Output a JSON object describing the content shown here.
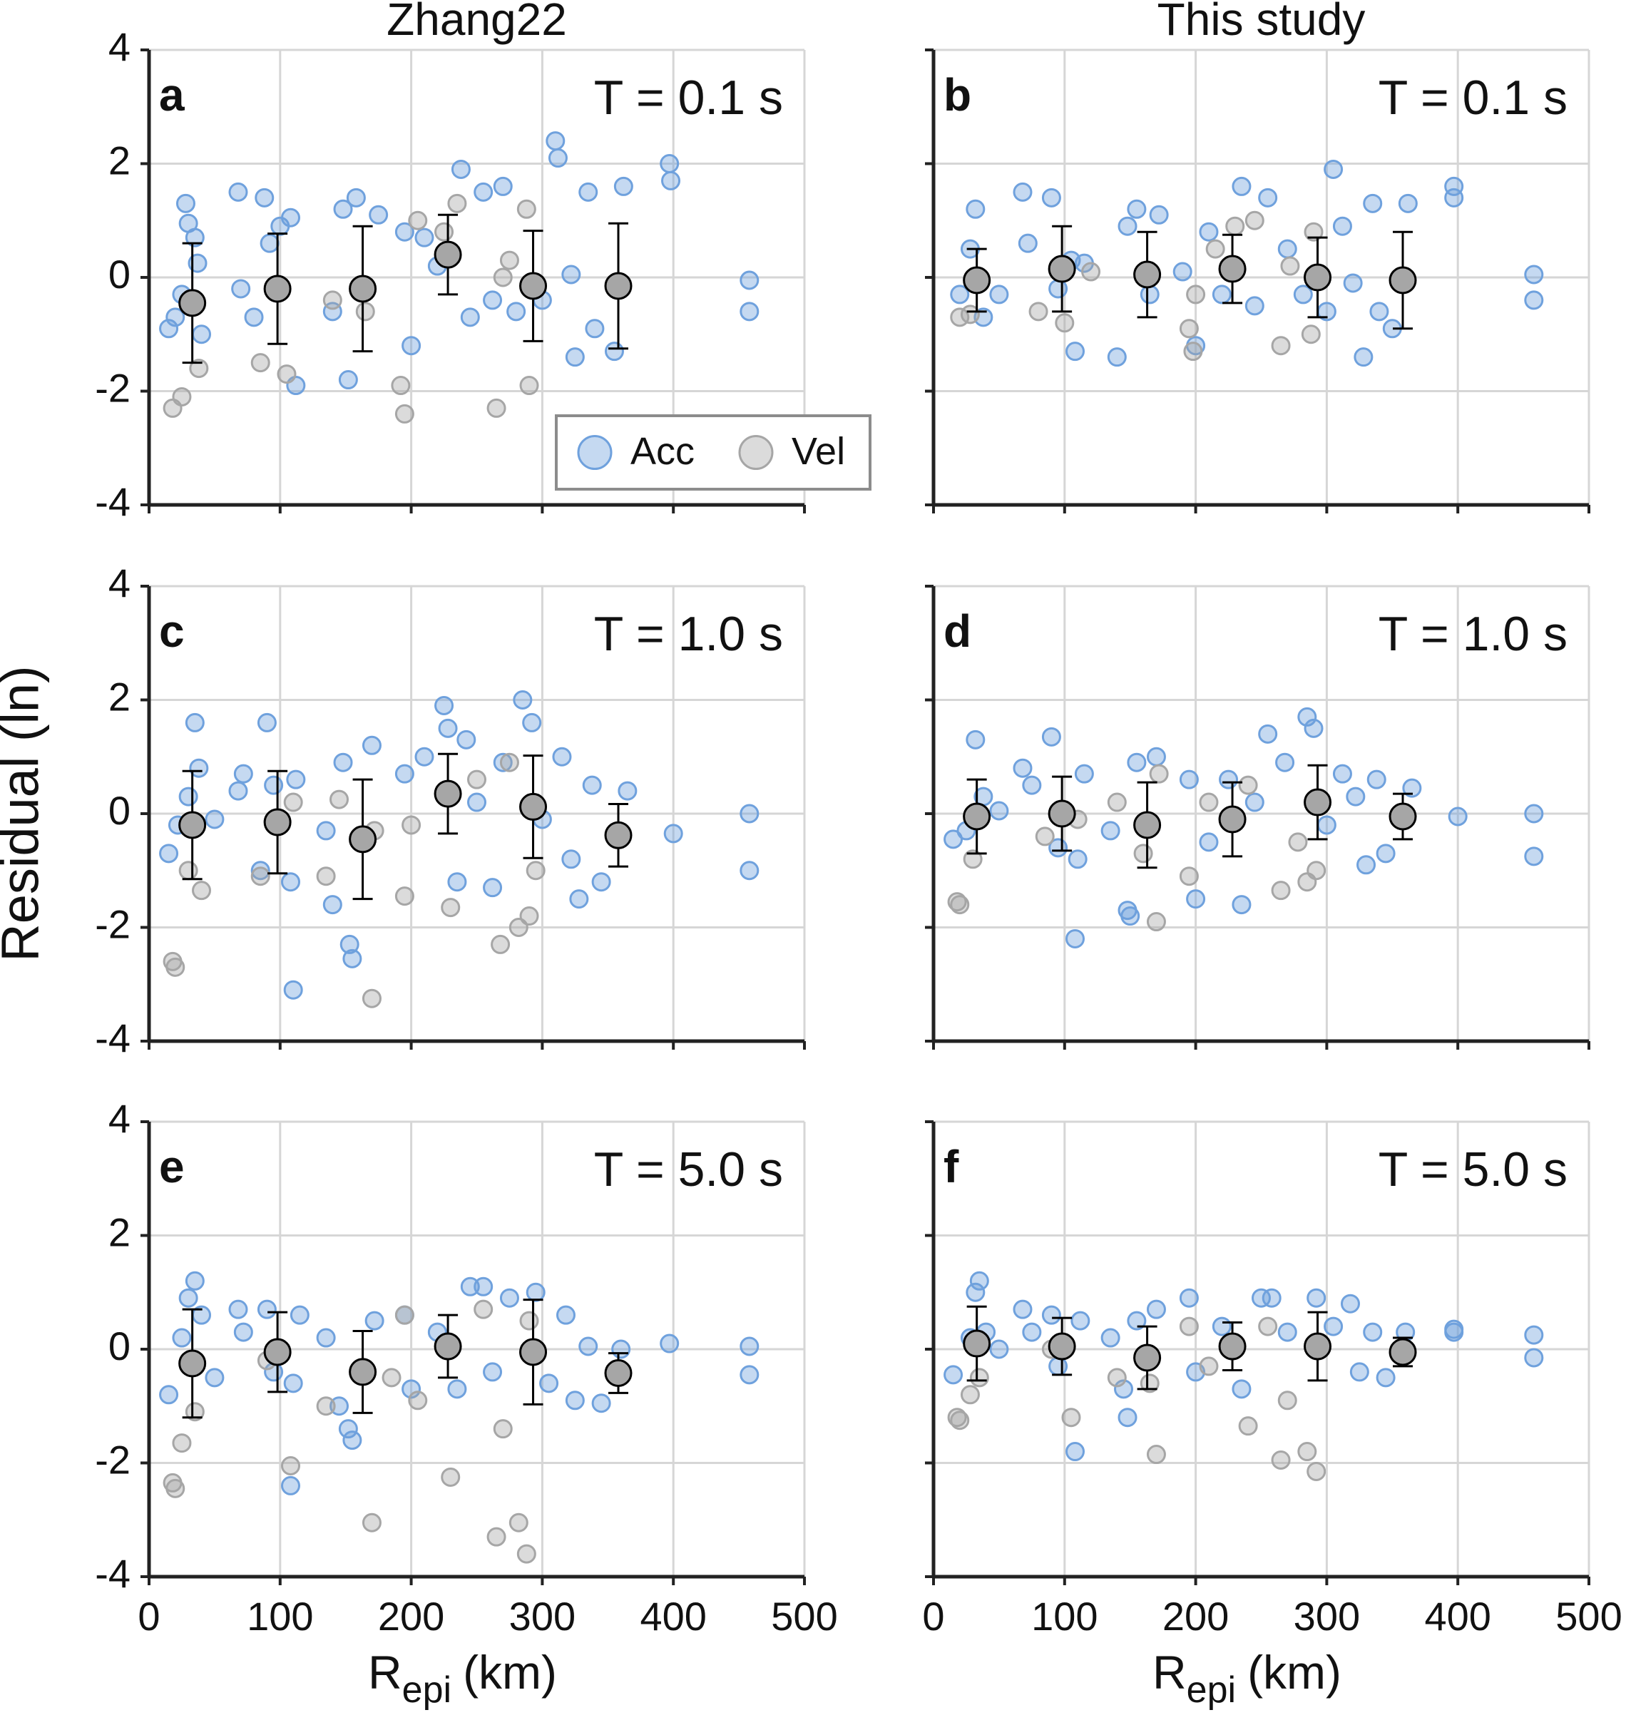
{
  "chart_data": [
    {
      "type": "scatter",
      "title": "Zhang22",
      "panel": "a",
      "annotation": "T = 0.1 s",
      "legend": "lower right",
      "xlim": [
        0,
        500
      ],
      "xticks": [
        0,
        100,
        200,
        300,
        400,
        500
      ],
      "ylim": [
        -4,
        4
      ],
      "yticks": [
        -4,
        -2,
        0,
        2,
        4
      ],
      "grid": true,
      "ytick_labels": true,
      "xtick_labels": false,
      "series": [
        {
          "type": "scatter",
          "name": "Acc",
          "color": "#6fa1dd",
          "x": [
            15,
            20,
            25,
            28,
            30,
            35,
            37,
            40,
            68,
            70,
            80,
            88,
            92,
            100,
            108,
            112,
            140,
            148,
            152,
            158,
            175,
            195,
            200,
            210,
            220,
            238,
            245,
            255,
            262,
            270,
            280,
            300,
            310,
            312,
            322,
            325,
            335,
            340,
            355,
            362,
            397,
            398,
            458,
            458
          ],
          "values": [
            -0.9,
            -0.7,
            -0.3,
            1.3,
            0.95,
            0.7,
            0.25,
            -1.0,
            1.5,
            -0.2,
            -0.7,
            1.4,
            0.6,
            0.9,
            1.05,
            -1.9,
            -0.6,
            1.2,
            -1.8,
            1.4,
            1.1,
            0.8,
            -1.2,
            0.7,
            0.2,
            1.9,
            -0.7,
            1.5,
            -0.4,
            1.6,
            -0.6,
            -0.4,
            2.4,
            2.1,
            0.05,
            -1.4,
            1.5,
            -0.9,
            -1.3,
            1.6,
            2.0,
            1.7,
            -0.05,
            -0.6
          ]
        },
        {
          "type": "scatter",
          "name": "Vel",
          "color": "#a6a6a6",
          "x": [
            18,
            25,
            38,
            85,
            105,
            140,
            165,
            192,
            195,
            205,
            225,
            235,
            265,
            275,
            288,
            290,
            270
          ],
          "values": [
            -2.3,
            -2.1,
            -1.6,
            -1.5,
            -1.7,
            -0.4,
            -0.6,
            -1.9,
            -2.4,
            1.0,
            0.8,
            1.3,
            -2.3,
            0.3,
            1.2,
            -1.9,
            0.0
          ]
        },
        {
          "type": "errorbar",
          "color": "#a6a6a6",
          "edgecolor": "#000000",
          "x": [
            33,
            98,
            163,
            228,
            293,
            358
          ],
          "values": [
            -0.45,
            -0.2,
            -0.2,
            0.4,
            -0.15,
            -0.15
          ],
          "errors": [
            1.05,
            0.97,
            1.1,
            0.7,
            0.97,
            1.1
          ]
        }
      ]
    },
    {
      "type": "scatter",
      "title": "This study",
      "panel": "b",
      "annotation": "T = 0.1 s",
      "xlim": [
        0,
        500
      ],
      "xticks": [
        0,
        100,
        200,
        300,
        400,
        500
      ],
      "ylim": [
        -4,
        4
      ],
      "yticks": [
        -4,
        -2,
        0,
        2,
        4
      ],
      "grid": true,
      "ytick_labels": false,
      "xtick_labels": false,
      "series": [
        {
          "type": "scatter",
          "color": "#6fa1dd",
          "x": [
            20,
            28,
            32,
            38,
            50,
            68,
            72,
            90,
            95,
            105,
            108,
            115,
            140,
            148,
            155,
            165,
            172,
            190,
            200,
            210,
            220,
            235,
            245,
            255,
            270,
            282,
            300,
            305,
            312,
            320,
            328,
            335,
            340,
            350,
            362,
            397,
            397,
            458,
            458
          ],
          "values": [
            -0.3,
            0.5,
            1.2,
            -0.7,
            -0.3,
            1.5,
            0.6,
            1.4,
            -0.2,
            0.3,
            -1.3,
            0.25,
            -1.4,
            0.9,
            1.2,
            -0.3,
            1.1,
            0.1,
            -1.2,
            0.8,
            -0.3,
            1.6,
            -0.5,
            1.4,
            0.5,
            -0.3,
            -0.6,
            1.9,
            0.9,
            -0.1,
            -1.4,
            1.3,
            -0.6,
            -0.9,
            1.3,
            1.6,
            1.4,
            0.05,
            -0.4
          ]
        },
        {
          "type": "scatter",
          "color": "#a6a6a6",
          "x": [
            20,
            28,
            80,
            100,
            120,
            195,
            198,
            215,
            230,
            245,
            265,
            272,
            288,
            290,
            200
          ],
          "values": [
            -0.7,
            -0.65,
            -0.6,
            -0.8,
            0.1,
            -0.9,
            -1.3,
            0.5,
            0.9,
            1.0,
            -1.2,
            0.2,
            -1.0,
            0.8,
            -0.3
          ]
        },
        {
          "type": "errorbar",
          "color": "#a6a6a6",
          "edgecolor": "#000000",
          "x": [
            33,
            98,
            163,
            228,
            293,
            358
          ],
          "values": [
            -0.05,
            0.15,
            0.05,
            0.15,
            0.0,
            -0.05
          ],
          "errors": [
            0.55,
            0.75,
            0.75,
            0.6,
            0.7,
            0.85
          ]
        }
      ]
    },
    {
      "type": "scatter",
      "panel": "c",
      "annotation": "T = 1.0 s",
      "ylabel": "Residual (ln)",
      "xlim": [
        0,
        500
      ],
      "xticks": [
        0,
        100,
        200,
        300,
        400,
        500
      ],
      "ylim": [
        -4,
        4
      ],
      "yticks": [
        -4,
        -2,
        0,
        2,
        4
      ],
      "grid": true,
      "ytick_labels": true,
      "xtick_labels": false,
      "series": [
        {
          "type": "scatter",
          "color": "#6fa1dd",
          "x": [
            15,
            22,
            30,
            35,
            38,
            50,
            68,
            72,
            85,
            90,
            95,
            108,
            110,
            112,
            135,
            140,
            148,
            153,
            155,
            170,
            195,
            210,
            225,
            228,
            235,
            242,
            250,
            262,
            270,
            285,
            292,
            300,
            315,
            322,
            328,
            338,
            345,
            365,
            400,
            458,
            458
          ],
          "values": [
            -0.7,
            -0.2,
            0.3,
            1.6,
            0.8,
            -0.1,
            0.4,
            0.7,
            -1.0,
            1.6,
            0.5,
            -1.2,
            -3.1,
            0.6,
            -0.3,
            -1.6,
            0.9,
            -2.3,
            -2.55,
            1.2,
            0.7,
            1.0,
            1.9,
            1.5,
            -1.2,
            1.3,
            0.2,
            -1.3,
            0.9,
            2.0,
            1.6,
            -0.1,
            1.0,
            -0.8,
            -1.5,
            0.5,
            -1.2,
            0.4,
            -0.35,
            0.0,
            -1.0
          ]
        },
        {
          "type": "scatter",
          "color": "#a6a6a6",
          "x": [
            18,
            20,
            30,
            40,
            85,
            110,
            135,
            145,
            170,
            172,
            195,
            200,
            230,
            250,
            268,
            275,
            282,
            290,
            295
          ],
          "values": [
            -2.6,
            -2.7,
            -1.0,
            -1.35,
            -1.1,
            0.2,
            -1.1,
            0.25,
            -3.25,
            -0.3,
            -1.45,
            -0.2,
            -1.65,
            0.6,
            -2.3,
            0.9,
            -2.0,
            -1.8,
            -1.0
          ]
        },
        {
          "type": "errorbar",
          "color": "#a6a6a6",
          "edgecolor": "#000000",
          "x": [
            33,
            98,
            163,
            228,
            293,
            358
          ],
          "values": [
            -0.2,
            -0.15,
            -0.45,
            0.35,
            0.12,
            -0.38
          ],
          "errors": [
            0.95,
            0.9,
            1.05,
            0.7,
            0.9,
            0.55
          ]
        }
      ]
    },
    {
      "type": "scatter",
      "panel": "d",
      "annotation": "T = 1.0 s",
      "xlim": [
        0,
        500
      ],
      "xticks": [
        0,
        100,
        200,
        300,
        400,
        500
      ],
      "ylim": [
        -4,
        4
      ],
      "yticks": [
        -4,
        -2,
        0,
        2,
        4
      ],
      "grid": true,
      "ytick_labels": false,
      "xtick_labels": false,
      "series": [
        {
          "type": "scatter",
          "color": "#6fa1dd",
          "x": [
            15,
            25,
            32,
            38,
            50,
            68,
            75,
            90,
            95,
            108,
            110,
            115,
            135,
            148,
            150,
            155,
            170,
            195,
            200,
            210,
            225,
            235,
            245,
            255,
            268,
            285,
            290,
            300,
            312,
            322,
            330,
            338,
            345,
            365,
            400,
            458,
            458
          ],
          "values": [
            -0.45,
            -0.3,
            1.3,
            0.3,
            0.05,
            0.8,
            0.5,
            1.35,
            -0.6,
            -2.2,
            -0.8,
            0.7,
            -0.3,
            -1.7,
            -1.8,
            0.9,
            1.0,
            0.6,
            -1.5,
            -0.5,
            0.6,
            -1.6,
            0.2,
            1.4,
            0.9,
            1.7,
            1.5,
            -0.2,
            0.7,
            0.3,
            -0.9,
            0.6,
            -0.7,
            0.45,
            -0.05,
            0.0,
            -0.75
          ]
        },
        {
          "type": "scatter",
          "color": "#a6a6a6",
          "x": [
            18,
            20,
            30,
            85,
            110,
            140,
            160,
            170,
            172,
            195,
            210,
            240,
            265,
            278,
            285,
            292
          ],
          "values": [
            -1.55,
            -1.6,
            -0.8,
            -0.4,
            -0.1,
            0.2,
            -0.7,
            -1.9,
            0.7,
            -1.1,
            0.2,
            0.5,
            -1.35,
            -0.5,
            -1.2,
            -1.0
          ]
        },
        {
          "type": "errorbar",
          "color": "#a6a6a6",
          "edgecolor": "#000000",
          "x": [
            33,
            98,
            163,
            228,
            293,
            358
          ],
          "values": [
            -0.05,
            0.0,
            -0.2,
            -0.1,
            0.2,
            -0.05
          ],
          "errors": [
            0.65,
            0.65,
            0.75,
            0.65,
            0.65,
            0.4
          ]
        }
      ]
    },
    {
      "type": "scatter",
      "panel": "e",
      "annotation": "T = 5.0 s",
      "xlabel": "R",
      "xlabel_sub": "epi",
      "xlabel_unit": "(km)",
      "xlim": [
        0,
        500
      ],
      "xticks": [
        0,
        100,
        200,
        300,
        400,
        500
      ],
      "ylim": [
        -4,
        4
      ],
      "yticks": [
        -4,
        -2,
        0,
        2,
        4
      ],
      "grid": true,
      "ytick_labels": true,
      "xtick_labels": true,
      "series": [
        {
          "type": "scatter",
          "color": "#6fa1dd",
          "x": [
            15,
            25,
            30,
            35,
            40,
            50,
            68,
            72,
            90,
            95,
            108,
            110,
            115,
            135,
            145,
            152,
            155,
            172,
            195,
            200,
            220,
            235,
            245,
            255,
            262,
            275,
            295,
            305,
            318,
            325,
            335,
            345,
            360,
            397,
            458,
            458
          ],
          "values": [
            -0.8,
            0.2,
            0.9,
            1.2,
            0.6,
            -0.5,
            0.7,
            0.3,
            0.7,
            -0.4,
            -2.4,
            -0.6,
            0.6,
            0.2,
            -1.0,
            -1.4,
            -1.6,
            0.5,
            0.6,
            -0.7,
            0.3,
            -0.7,
            1.1,
            1.1,
            -0.4,
            0.9,
            1.0,
            -0.6,
            0.6,
            -0.9,
            0.05,
            -0.95,
            0.0,
            0.1,
            0.05,
            -0.45
          ]
        },
        {
          "type": "scatter",
          "color": "#a6a6a6",
          "x": [
            18,
            20,
            25,
            35,
            90,
            108,
            135,
            170,
            185,
            195,
            205,
            230,
            255,
            265,
            270,
            282,
            288,
            290
          ],
          "values": [
            -2.35,
            -2.45,
            -1.65,
            -1.1,
            -0.2,
            -2.05,
            -1.0,
            -3.05,
            -0.5,
            0.6,
            -0.9,
            -2.25,
            0.7,
            -3.3,
            -1.4,
            -3.05,
            -3.6,
            0.5
          ]
        },
        {
          "type": "errorbar",
          "color": "#a6a6a6",
          "edgecolor": "#000000",
          "x": [
            33,
            98,
            163,
            228,
            293,
            358
          ],
          "values": [
            -0.25,
            -0.05,
            -0.4,
            0.05,
            -0.05,
            -0.42
          ],
          "errors": [
            0.95,
            0.7,
            0.72,
            0.55,
            0.92,
            0.35
          ]
        }
      ]
    },
    {
      "type": "scatter",
      "panel": "f",
      "annotation": "T = 5.0 s",
      "xlabel": "R",
      "xlabel_sub": "epi",
      "xlabel_unit": "(km)",
      "xlim": [
        0,
        500
      ],
      "xticks": [
        0,
        100,
        200,
        300,
        400,
        500
      ],
      "ylim": [
        -4,
        4
      ],
      "yticks": [
        -4,
        -2,
        0,
        2,
        4
      ],
      "grid": true,
      "ytick_labels": false,
      "xtick_labels": true,
      "series": [
        {
          "type": "scatter",
          "color": "#6fa1dd",
          "x": [
            15,
            28,
            32,
            35,
            40,
            50,
            68,
            75,
            90,
            95,
            108,
            112,
            135,
            145,
            148,
            155,
            170,
            195,
            200,
            220,
            235,
            250,
            258,
            270,
            292,
            305,
            318,
            325,
            335,
            345,
            360,
            397,
            397,
            458,
            458
          ],
          "values": [
            -0.45,
            0.2,
            1.0,
            1.2,
            0.3,
            0.0,
            0.7,
            0.3,
            0.6,
            -0.3,
            -1.8,
            0.5,
            0.2,
            -0.7,
            -1.2,
            0.5,
            0.7,
            0.9,
            -0.4,
            0.4,
            -0.7,
            0.9,
            0.9,
            0.3,
            0.9,
            0.4,
            0.8,
            -0.4,
            0.3,
            -0.5,
            0.3,
            0.35,
            0.3,
            0.25,
            -0.15
          ]
        },
        {
          "type": "scatter",
          "color": "#a6a6a6",
          "x": [
            18,
            20,
            28,
            35,
            90,
            105,
            140,
            165,
            170,
            195,
            210,
            240,
            255,
            265,
            270,
            285,
            292
          ],
          "values": [
            -1.2,
            -1.25,
            -0.8,
            -0.5,
            0.0,
            -1.2,
            -0.5,
            -0.6,
            -1.85,
            0.4,
            -0.3,
            -1.35,
            0.4,
            -1.95,
            -0.9,
            -1.8,
            -2.15
          ]
        },
        {
          "type": "errorbar",
          "color": "#a6a6a6",
          "edgecolor": "#000000",
          "x": [
            33,
            98,
            163,
            228,
            293,
            358
          ],
          "values": [
            0.1,
            0.05,
            -0.15,
            0.05,
            0.05,
            -0.05
          ],
          "errors": [
            0.65,
            0.5,
            0.55,
            0.42,
            0.6,
            0.25
          ]
        }
      ]
    }
  ]
}
